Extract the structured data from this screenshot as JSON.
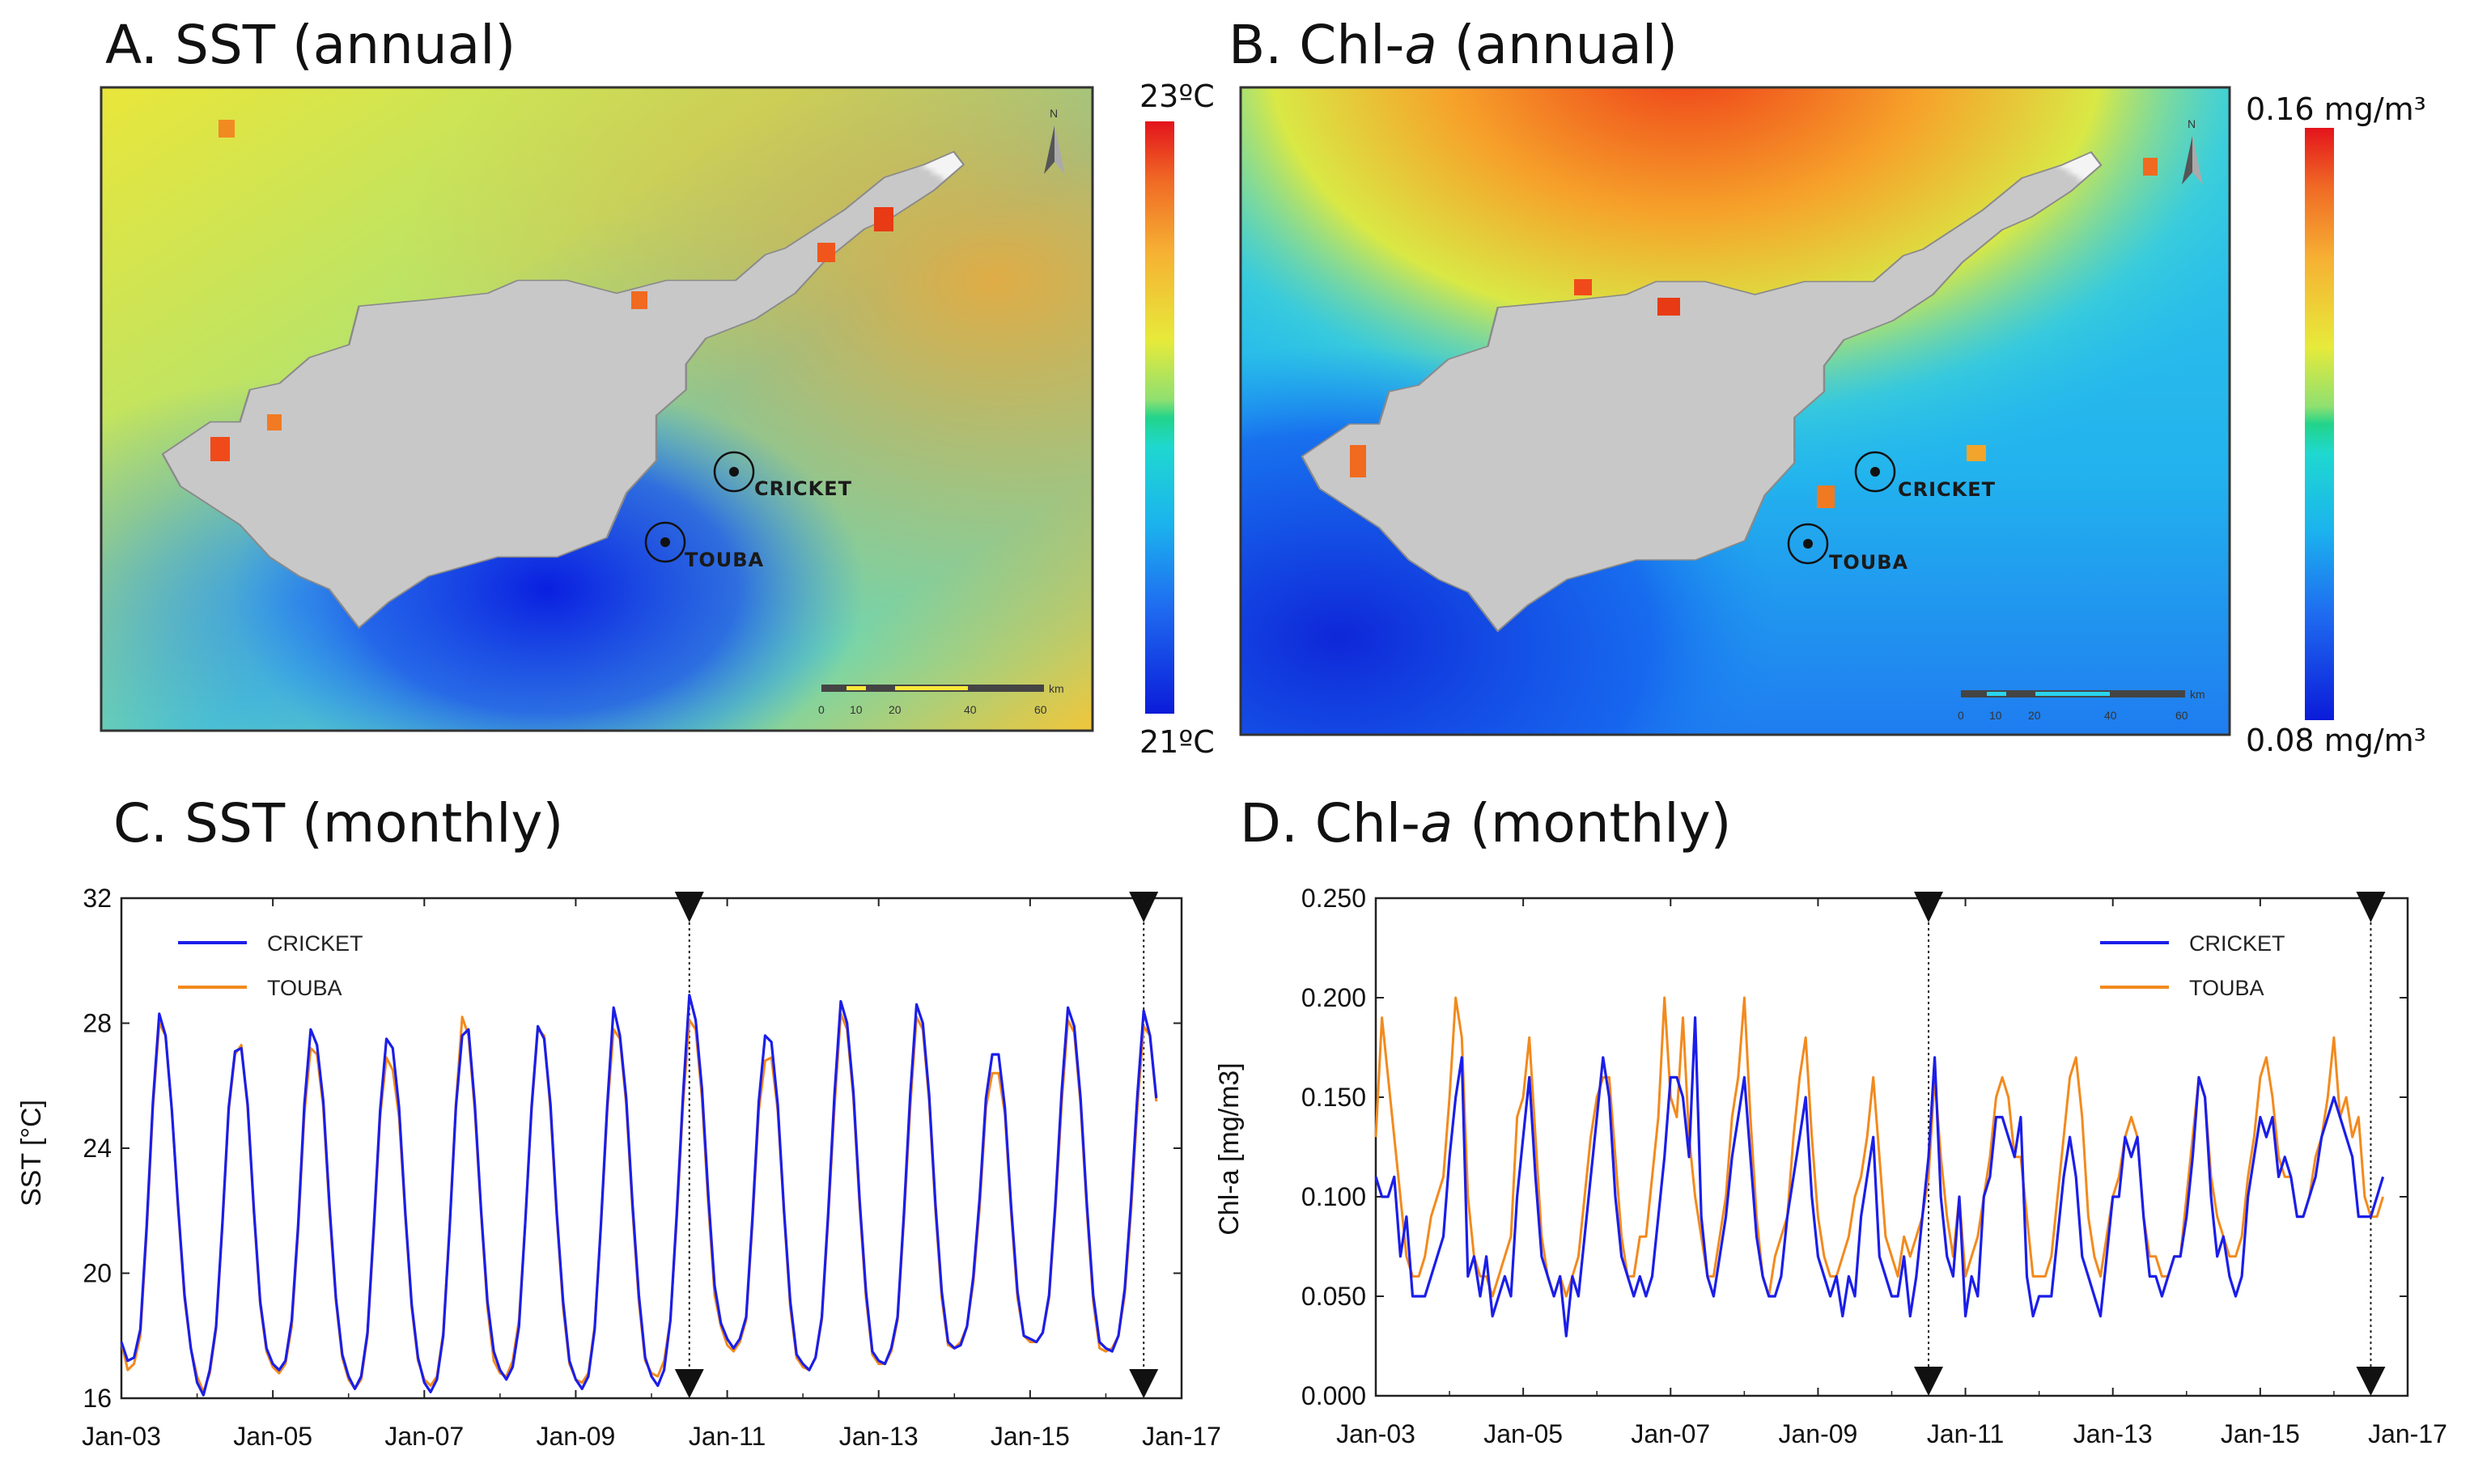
{
  "panels": {
    "a": {
      "title": "A. SST (annual)",
      "cb_max": "23ºC",
      "cb_min": "21ºC"
    },
    "b": {
      "title_pre": "B. Chl-",
      "title_italic": "a",
      "title_post": " (annual)",
      "cb_max": "0.16 mg/m³",
      "cb_min": "0.08 mg/m³"
    },
    "c": {
      "title": "C. SST (monthly)"
    },
    "d": {
      "title_pre": "D. Chl-",
      "title_italic": "a",
      "title_post": " (monthly)"
    }
  },
  "map": {
    "sites": [
      "CRICKET",
      "TOUBA"
    ],
    "north_label": "N",
    "scale_unit": "km",
    "scale_ticks": [
      "0",
      "10",
      "20",
      "40",
      "60"
    ],
    "icons": [
      "north-arrow-icon",
      "site-marker-icon"
    ]
  },
  "colors": {
    "cricket": "#1b1ee8",
    "touba": "#f28a1e",
    "grid": "#333333"
  },
  "chart_data": [
    {
      "type": "line",
      "title": "C. SST (monthly)",
      "xlabel": "",
      "ylabel": "SST [°C]",
      "ylim": [
        16,
        32
      ],
      "yticks": [
        "16",
        "20",
        "24",
        "28",
        "32"
      ],
      "xticks": [
        "Jan-03",
        "Jan-05",
        "Jan-07",
        "Jan-09",
        "Jan-11",
        "Jan-13",
        "Jan-15",
        "Jan-17"
      ],
      "x_start": "2003-01",
      "x_range_years": [
        2003.0,
        2017.0
      ],
      "markers_at_years": [
        2010.5,
        2016.5
      ],
      "legend": "top-left",
      "series": [
        {
          "name": "CRICKET",
          "values": [
            17.8,
            17.2,
            17.3,
            18.2,
            21.5,
            25.5,
            28.3,
            27.6,
            25.2,
            22.1,
            19.3,
            17.6,
            16.5,
            16.1,
            16.9,
            18.3,
            21.6,
            25.3,
            27.1,
            27.2,
            25.4,
            22.0,
            19.1,
            17.6,
            17.1,
            16.9,
            17.2,
            18.5,
            21.5,
            25.4,
            27.8,
            27.3,
            25.5,
            22.1,
            19.2,
            17.4,
            16.7,
            16.3,
            16.7,
            18.1,
            21.5,
            25.2,
            27.5,
            27.2,
            25.3,
            21.9,
            19.0,
            17.3,
            16.5,
            16.2,
            16.6,
            18.0,
            21.4,
            25.3,
            27.6,
            27.8,
            25.4,
            22.0,
            19.1,
            17.5,
            16.9,
            16.6,
            17.0,
            18.3,
            21.6,
            25.3,
            27.9,
            27.5,
            25.4,
            21.9,
            19.1,
            17.2,
            16.6,
            16.3,
            16.7,
            18.2,
            21.6,
            25.4,
            28.5,
            27.6,
            25.6,
            22.2,
            19.3,
            17.3,
            16.7,
            16.4,
            16.9,
            18.5,
            21.9,
            25.7,
            28.9,
            28.1,
            25.9,
            22.5,
            19.6,
            18.4,
            17.9,
            17.6,
            17.9,
            18.6,
            21.8,
            25.5,
            27.6,
            27.4,
            25.4,
            22.0,
            19.1,
            17.4,
            17.1,
            16.9,
            17.3,
            18.6,
            21.9,
            25.7,
            28.7,
            28.0,
            25.8,
            22.3,
            19.4,
            17.5,
            17.2,
            17.1,
            17.6,
            18.6,
            21.9,
            25.7,
            28.6,
            28.0,
            25.7,
            22.2,
            19.4,
            17.8,
            17.6,
            17.7,
            18.3,
            19.9,
            22.4,
            25.6,
            27.0,
            27.0,
            25.3,
            22.1,
            19.4,
            18.0,
            17.9,
            17.8,
            18.1,
            19.3,
            22.2,
            25.8,
            28.5,
            27.9,
            25.6,
            22.2,
            19.3,
            17.8,
            17.6,
            17.5,
            18.0,
            19.5,
            22.3,
            25.7,
            28.4,
            27.6,
            25.6
          ]
        },
        {
          "name": "TOUBA",
          "values": [
            17.8,
            16.9,
            17.1,
            18.0,
            21.3,
            25.3,
            28.0,
            27.6,
            25.2,
            22.0,
            19.2,
            17.6,
            16.7,
            16.2,
            16.8,
            18.2,
            21.5,
            25.2,
            27.0,
            27.3,
            25.3,
            21.9,
            19.0,
            17.5,
            17.0,
            16.8,
            17.1,
            18.3,
            21.3,
            25.1,
            27.2,
            27.0,
            25.3,
            21.9,
            19.1,
            17.3,
            16.6,
            16.3,
            16.6,
            18.0,
            21.3,
            25.0,
            26.9,
            26.5,
            25.0,
            21.8,
            18.9,
            17.2,
            16.6,
            16.4,
            16.7,
            18.1,
            21.5,
            25.4,
            28.2,
            27.6,
            25.2,
            21.9,
            18.9,
            17.2,
            16.8,
            16.7,
            17.2,
            18.5,
            21.6,
            25.2,
            27.8,
            27.6,
            25.2,
            21.8,
            18.9,
            17.1,
            16.6,
            16.5,
            16.8,
            18.3,
            21.5,
            25.2,
            27.8,
            27.5,
            25.4,
            22.0,
            19.1,
            17.2,
            16.8,
            16.7,
            17.2,
            18.5,
            21.7,
            25.4,
            28.1,
            27.8,
            25.6,
            22.2,
            19.3,
            18.3,
            17.7,
            17.5,
            17.8,
            18.5,
            21.6,
            25.2,
            26.8,
            26.9,
            25.2,
            21.9,
            18.9,
            17.3,
            17.0,
            16.9,
            17.3,
            18.5,
            21.7,
            25.3,
            28.3,
            27.8,
            25.6,
            22.1,
            19.2,
            17.4,
            17.1,
            17.1,
            17.5,
            18.5,
            21.7,
            25.3,
            28.2,
            27.8,
            25.5,
            22.0,
            19.2,
            17.7,
            17.6,
            17.8,
            18.3,
            19.7,
            22.1,
            25.3,
            26.4,
            26.4,
            25.1,
            21.9,
            19.2,
            18.0,
            17.8,
            17.8,
            18.1,
            19.2,
            22.0,
            25.4,
            28.1,
            27.7,
            25.4,
            22.0,
            19.1,
            17.6,
            17.5,
            17.6,
            18.0,
            19.3,
            22.0,
            25.3,
            27.9,
            27.6,
            25.5
          ]
        }
      ]
    },
    {
      "type": "line",
      "title": "D. Chl-a (monthly)",
      "xlabel": "",
      "ylabel": "Chl-a [mg/m3]",
      "ylim": [
        0.0,
        0.25
      ],
      "yticks": [
        "0.000",
        "0.050",
        "0.100",
        "0.150",
        "0.200",
        "0.250"
      ],
      "xticks": [
        "Jan-03",
        "Jan-05",
        "Jan-07",
        "Jan-09",
        "Jan-11",
        "Jan-13",
        "Jan-15",
        "Jan-17"
      ],
      "x_start": "2003-01",
      "x_range_years": [
        2003.0,
        2017.0
      ],
      "markers_at_years": [
        2010.5,
        2016.5
      ],
      "legend": "top-right",
      "series": [
        {
          "name": "CRICKET",
          "values": [
            0.11,
            0.1,
            0.1,
            0.11,
            0.07,
            0.09,
            0.05,
            0.05,
            0.05,
            0.06,
            0.07,
            0.08,
            0.12,
            0.15,
            0.17,
            0.06,
            0.07,
            0.05,
            0.07,
            0.04,
            0.05,
            0.06,
            0.05,
            0.1,
            0.13,
            0.16,
            0.11,
            0.07,
            0.06,
            0.05,
            0.06,
            0.03,
            0.06,
            0.05,
            0.08,
            0.11,
            0.14,
            0.17,
            0.15,
            0.1,
            0.07,
            0.06,
            0.05,
            0.06,
            0.05,
            0.06,
            0.09,
            0.12,
            0.16,
            0.16,
            0.15,
            0.12,
            0.19,
            0.09,
            0.06,
            0.05,
            0.07,
            0.09,
            0.12,
            0.14,
            0.16,
            0.12,
            0.08,
            0.06,
            0.05,
            0.05,
            0.06,
            0.09,
            0.11,
            0.13,
            0.15,
            0.1,
            0.07,
            0.06,
            0.05,
            0.06,
            0.04,
            0.06,
            0.05,
            0.09,
            0.11,
            0.13,
            0.07,
            0.06,
            0.05,
            0.05,
            0.07,
            0.04,
            0.06,
            0.09,
            0.12,
            0.17,
            0.1,
            0.07,
            0.06,
            0.1,
            0.04,
            0.06,
            0.05,
            0.1,
            0.11,
            0.14,
            0.14,
            0.13,
            0.12,
            0.14,
            0.06,
            0.04,
            0.05,
            0.05,
            0.05,
            0.08,
            0.11,
            0.13,
            0.11,
            0.07,
            0.06,
            0.05,
            0.04,
            0.07,
            0.1,
            0.1,
            0.13,
            0.12,
            0.13,
            0.09,
            0.06,
            0.06,
            0.05,
            0.06,
            0.07,
            0.07,
            0.09,
            0.12,
            0.16,
            0.15,
            0.1,
            0.07,
            0.08,
            0.06,
            0.05,
            0.06,
            0.1,
            0.12,
            0.14,
            0.13,
            0.14,
            0.11,
            0.12,
            0.11,
            0.09,
            0.09,
            0.1,
            0.11,
            0.13,
            0.14,
            0.15,
            0.14,
            0.13,
            0.12,
            0.09,
            0.09,
            0.09,
            0.1,
            0.11
          ]
        },
        {
          "name": "TOUBA",
          "values": [
            0.13,
            0.19,
            0.16,
            0.13,
            0.1,
            0.07,
            0.06,
            0.06,
            0.07,
            0.09,
            0.1,
            0.11,
            0.15,
            0.2,
            0.18,
            0.1,
            0.07,
            0.06,
            0.06,
            0.05,
            0.06,
            0.07,
            0.08,
            0.14,
            0.15,
            0.18,
            0.13,
            0.08,
            0.06,
            0.05,
            0.06,
            0.05,
            0.06,
            0.07,
            0.1,
            0.13,
            0.15,
            0.16,
            0.16,
            0.12,
            0.08,
            0.06,
            0.06,
            0.08,
            0.08,
            0.11,
            0.14,
            0.2,
            0.15,
            0.14,
            0.19,
            0.13,
            0.1,
            0.08,
            0.06,
            0.06,
            0.08,
            0.1,
            0.14,
            0.16,
            0.2,
            0.14,
            0.09,
            0.06,
            0.05,
            0.07,
            0.08,
            0.09,
            0.13,
            0.16,
            0.18,
            0.13,
            0.09,
            0.07,
            0.06,
            0.06,
            0.07,
            0.08,
            0.1,
            0.11,
            0.13,
            0.16,
            0.12,
            0.08,
            0.07,
            0.06,
            0.08,
            0.07,
            0.08,
            0.09,
            0.11,
            0.16,
            0.12,
            0.09,
            0.07,
            0.1,
            0.06,
            0.07,
            0.08,
            0.1,
            0.12,
            0.15,
            0.16,
            0.15,
            0.12,
            0.12,
            0.09,
            0.06,
            0.06,
            0.06,
            0.07,
            0.1,
            0.13,
            0.16,
            0.17,
            0.14,
            0.09,
            0.07,
            0.06,
            0.08,
            0.1,
            0.11,
            0.13,
            0.14,
            0.13,
            0.09,
            0.07,
            0.07,
            0.06,
            0.06,
            0.07,
            0.07,
            0.1,
            0.13,
            0.16,
            0.15,
            0.11,
            0.09,
            0.08,
            0.07,
            0.07,
            0.08,
            0.11,
            0.13,
            0.16,
            0.17,
            0.15,
            0.12,
            0.11,
            0.11,
            0.09,
            0.09,
            0.1,
            0.12,
            0.13,
            0.15,
            0.18,
            0.14,
            0.15,
            0.13,
            0.14,
            0.1,
            0.09,
            0.09,
            0.1
          ]
        }
      ]
    }
  ]
}
